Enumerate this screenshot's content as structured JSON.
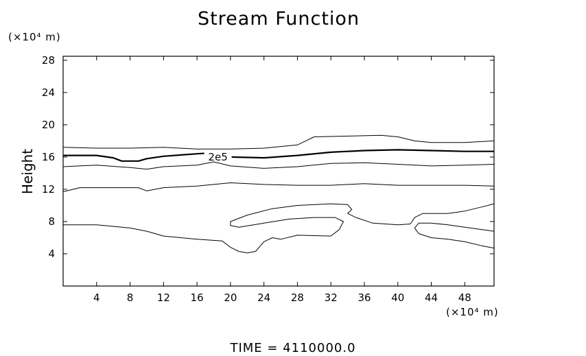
{
  "chart_data": {
    "type": "contour",
    "title": "Stream Function",
    "ylabel": "Height",
    "yunit": "(×10⁴ m)",
    "xunit": "(×10⁴ m)",
    "xlim": [
      0,
      51.5
    ],
    "ylim": [
      0,
      28.5
    ],
    "xticks": [
      4,
      8,
      12,
      16,
      20,
      24,
      28,
      32,
      36,
      40,
      44,
      48
    ],
    "yticks": [
      4,
      8,
      12,
      16,
      20,
      24,
      28
    ],
    "grid": false,
    "contours": [
      {
        "label": "",
        "bold": false,
        "points": [
          [
            0,
            17.2
          ],
          [
            4,
            17.1
          ],
          [
            8,
            17.1
          ],
          [
            12,
            17.2
          ],
          [
            16,
            17.0
          ],
          [
            20,
            17.0
          ],
          [
            24,
            17.1
          ],
          [
            28,
            17.5
          ],
          [
            29,
            18.0
          ],
          [
            30,
            18.5
          ],
          [
            34,
            18.6
          ],
          [
            38,
            18.7
          ],
          [
            40,
            18.5
          ],
          [
            42,
            18.0
          ],
          [
            44,
            17.8
          ],
          [
            48,
            17.8
          ],
          [
            51.5,
            18.0
          ]
        ]
      },
      {
        "label": "2e5",
        "bold": true,
        "points": [
          [
            0,
            16.2
          ],
          [
            4,
            16.2
          ],
          [
            6,
            15.9
          ],
          [
            7,
            15.5
          ],
          [
            9,
            15.5
          ],
          [
            10,
            15.8
          ],
          [
            12,
            16.1
          ],
          [
            16,
            16.4
          ],
          [
            17.5,
            16.5
          ],
          [
            20,
            16.0
          ],
          [
            24,
            15.9
          ],
          [
            28,
            16.2
          ],
          [
            32,
            16.6
          ],
          [
            36,
            16.8
          ],
          [
            40,
            16.9
          ],
          [
            44,
            16.8
          ],
          [
            48,
            16.7
          ],
          [
            51.5,
            16.7
          ]
        ]
      },
      {
        "label": "",
        "bold": false,
        "points": [
          [
            0,
            14.8
          ],
          [
            4,
            15.0
          ],
          [
            8,
            14.7
          ],
          [
            10,
            14.5
          ],
          [
            12,
            14.8
          ],
          [
            16,
            15.0
          ],
          [
            18,
            15.4
          ],
          [
            20,
            14.9
          ],
          [
            24,
            14.6
          ],
          [
            28,
            14.8
          ],
          [
            32,
            15.2
          ],
          [
            36,
            15.3
          ],
          [
            40,
            15.1
          ],
          [
            44,
            14.9
          ],
          [
            48,
            15.0
          ],
          [
            51.5,
            15.1
          ]
        ]
      },
      {
        "label": "",
        "bold": false,
        "points": [
          [
            0,
            11.7
          ],
          [
            2,
            12.2
          ],
          [
            6,
            12.2
          ],
          [
            9,
            12.2
          ],
          [
            10,
            11.8
          ],
          [
            12,
            12.2
          ],
          [
            16,
            12.4
          ],
          [
            20,
            12.8
          ],
          [
            24,
            12.6
          ],
          [
            28,
            12.5
          ],
          [
            32,
            12.5
          ],
          [
            36,
            12.7
          ],
          [
            40,
            12.5
          ],
          [
            44,
            12.5
          ],
          [
            48,
            12.5
          ],
          [
            51.5,
            12.4
          ]
        ]
      },
      {
        "label": "",
        "bold": false,
        "points": [
          [
            0,
            7.6
          ],
          [
            4,
            7.6
          ],
          [
            8,
            7.2
          ],
          [
            10,
            6.8
          ],
          [
            12,
            6.2
          ],
          [
            16,
            5.8
          ],
          [
            19,
            5.6
          ],
          [
            20,
            4.8
          ],
          [
            21,
            4.3
          ],
          [
            22,
            4.1
          ],
          [
            23,
            4.3
          ],
          [
            24,
            5.5
          ],
          [
            25,
            6.0
          ],
          [
            26,
            5.8
          ],
          [
            28,
            6.3
          ],
          [
            32,
            6.2
          ],
          [
            33,
            7.0
          ],
          [
            33.5,
            8.0
          ],
          [
            32.5,
            8.5
          ],
          [
            30,
            8.5
          ],
          [
            27,
            8.3
          ],
          [
            24,
            7.8
          ],
          [
            21,
            7.3
          ],
          [
            20,
            7.5
          ],
          [
            20,
            8.0
          ],
          [
            22,
            8.8
          ],
          [
            25,
            9.6
          ],
          [
            28,
            10.0
          ],
          [
            32,
            10.2
          ],
          [
            34,
            10.1
          ],
          [
            34.5,
            9.5
          ],
          [
            34,
            9.0
          ],
          [
            35,
            8.5
          ],
          [
            37,
            7.8
          ],
          [
            40,
            7.6
          ],
          [
            41.5,
            7.7
          ],
          [
            42,
            8.5
          ],
          [
            43,
            9.0
          ],
          [
            46,
            9.0
          ],
          [
            48,
            9.3
          ],
          [
            50,
            9.8
          ],
          [
            51.5,
            10.2
          ]
        ]
      },
      {
        "label": "",
        "bold": false,
        "points": [
          [
            51.5,
            4.7
          ],
          [
            50,
            5.0
          ],
          [
            48,
            5.5
          ],
          [
            46,
            5.8
          ],
          [
            44,
            6.0
          ],
          [
            42.5,
            6.5
          ],
          [
            42,
            7.2
          ],
          [
            42.5,
            7.8
          ],
          [
            44,
            7.8
          ],
          [
            46,
            7.6
          ],
          [
            48,
            7.3
          ],
          [
            51.5,
            6.8
          ]
        ]
      }
    ]
  },
  "footer": {
    "time_label": "TIME  =  4110000.0"
  }
}
